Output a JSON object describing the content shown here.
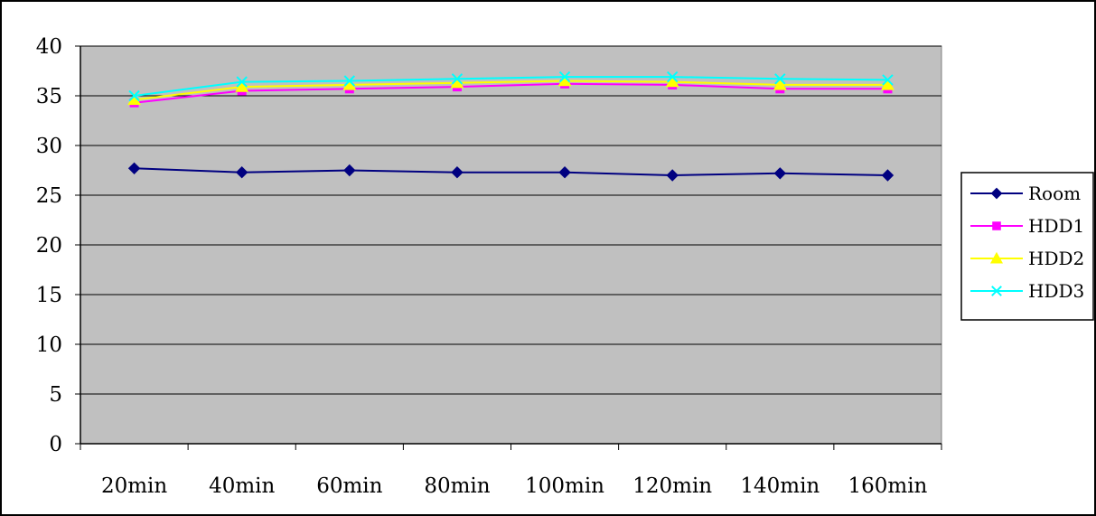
{
  "chart_data": {
    "type": "line",
    "title": "",
    "xlabel": "",
    "ylabel": "",
    "categories": [
      "20min",
      "40min",
      "60min",
      "80min",
      "100min",
      "120min",
      "140min",
      "160min"
    ],
    "ylim": [
      0,
      40
    ],
    "yticks": [
      0,
      5,
      10,
      15,
      20,
      25,
      30,
      35,
      40
    ],
    "grid": "horizontal",
    "plot_background": "#c0c0c0",
    "legend": "right",
    "series": [
      {
        "name": "Room",
        "color": "#000080",
        "marker": "diamond",
        "values": [
          27.7,
          27.3,
          27.5,
          27.3,
          27.3,
          27.0,
          27.2,
          27.0
        ]
      },
      {
        "name": "HDD1",
        "color": "#ff00ff",
        "marker": "square",
        "values": [
          34.3,
          35.5,
          35.7,
          35.9,
          36.2,
          36.1,
          35.7,
          35.7
        ]
      },
      {
        "name": "HDD2",
        "color": "#ffff00",
        "marker": "triangle",
        "values": [
          34.6,
          35.9,
          36.1,
          36.3,
          36.5,
          36.4,
          36.1,
          36.1
        ]
      },
      {
        "name": "HDD3",
        "color": "#00ffff",
        "marker": "x",
        "values": [
          35.0,
          36.4,
          36.5,
          36.7,
          36.9,
          36.9,
          36.7,
          36.6
        ]
      }
    ]
  }
}
